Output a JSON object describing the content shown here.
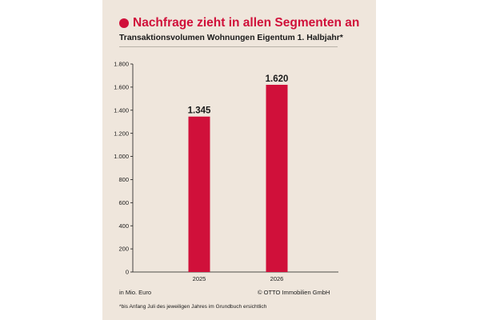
{
  "headline": "Nachfrage zieht in allen Segmenten an",
  "subtitle": "Transaktionsvolumen Wohnungen Eigentum 1. Halbjahr*",
  "unit_note": "in Mio. Euro",
  "source": "© OTTO Immobilien GmbH",
  "footnote": "*bis Anfang Juli des jeweiligen Jahres im Grundbuch ersichtlich",
  "colors": {
    "accent": "#d0103a",
    "background": "#efe6dc",
    "text": "#1a1a1a"
  },
  "chart_data": {
    "type": "bar",
    "categories": [
      "2025",
      "2026"
    ],
    "values": [
      1345,
      1620
    ],
    "value_labels": [
      "1.345",
      "1.620"
    ],
    "ylim": [
      0,
      1800
    ],
    "yticks": [
      0,
      200,
      400,
      600,
      800,
      1000,
      1200,
      1400,
      1600,
      1800
    ],
    "ytick_labels": [
      "0",
      "200",
      "400",
      "600",
      "800",
      "1.000",
      "1.200",
      "1.400",
      "1.600",
      "1.800"
    ],
    "grid": false,
    "legend": false
  }
}
